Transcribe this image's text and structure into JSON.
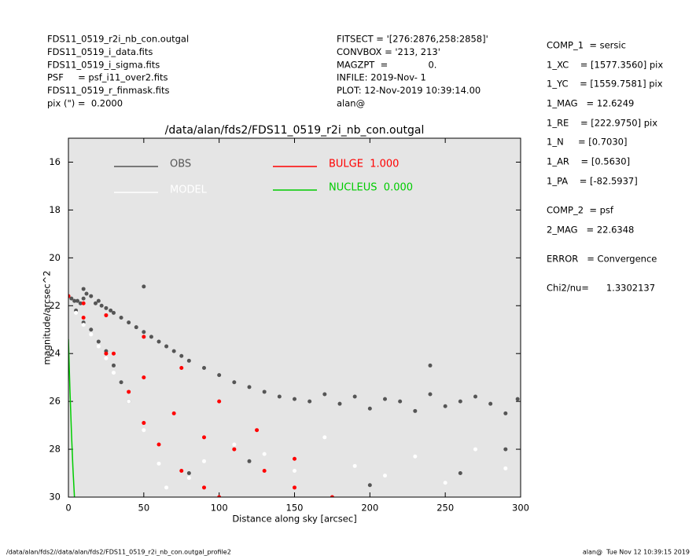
{
  "header_left": [
    "FDS11_0519_r2i_nb_con.outgal",
    "FDS11_0519_i_data.fits",
    "FDS11_0519_i_sigma.fits",
    "PSF     = psf_i11_over2.fits",
    "FDS11_0519_r_finmask.fits",
    "pix (\") =  0.2000"
  ],
  "header_mid": [
    "FITSECT = '[276:2876,258:2858]'",
    "CONVBOX = '213, 213'",
    "MAGZPT  =              0.",
    "INFILE: 2019-Nov- 1",
    "PLOT: 12-Nov-2019 10:39:14.00",
    "alan@"
  ],
  "parameters": [
    "COMP_1  = sersic",
    "1_XC    = [1577.3560] pix",
    "1_YC    = [1559.7581] pix",
    "1_MAG   = 12.6249",
    "1_RE    = [222.9750] pix",
    "1_N     = [0.7030]",
    "1_AR    = [0.5630]",
    "1_PA    = [-82.5937]",
    "COMP_2  = psf",
    "2_MAG   = 22.6348",
    "ERROR   = Convergence",
    "Chi2/nu=      1.3302137"
  ],
  "footer": {
    "left": "/data/alan/fds2//data/alan/fds2/FDS11_0519_r2i_nb_con.outgal_profile2",
    "right": "alan@  Tue Nov 12 10:39:15 2019"
  },
  "chart_data": {
    "type": "scatter",
    "title": "/data/alan/fds2/FDS11_0519_r2i_nb_con.outgal",
    "xlabel": "Distance along sky [arcsec]",
    "ylabel": "magnitude/arcsec^2",
    "xlim": [
      0,
      300
    ],
    "xticks": [
      0,
      50,
      100,
      150,
      200,
      250,
      300
    ],
    "ylim": [
      30,
      15
    ],
    "yticks": [
      16,
      18,
      20,
      22,
      24,
      26,
      28,
      30
    ],
    "background": "#e5e5e5",
    "series": [
      {
        "name": "OBS",
        "color": "#555555",
        "mode": "points",
        "x": [
          0,
          2,
          4,
          6,
          8,
          10,
          12,
          15,
          18,
          20,
          22,
          25,
          28,
          30,
          35,
          40,
          45,
          50,
          55,
          60,
          65,
          70,
          75,
          80,
          90,
          100,
          110,
          120,
          130,
          140,
          150,
          160,
          170,
          180,
          190,
          200,
          210,
          220,
          230,
          240,
          250,
          260,
          270,
          280,
          290,
          298,
          5,
          10,
          15,
          20,
          25,
          30,
          35,
          40,
          50,
          10,
          240,
          80,
          120,
          200,
          260,
          290
        ],
        "y": [
          21.6,
          21.7,
          21.8,
          21.8,
          21.9,
          21.7,
          21.5,
          21.6,
          21.9,
          21.8,
          22.0,
          22.1,
          22.2,
          22.3,
          22.5,
          22.7,
          22.9,
          23.1,
          23.3,
          23.5,
          23.7,
          23.9,
          24.1,
          24.3,
          24.6,
          24.9,
          25.2,
          25.4,
          25.6,
          25.8,
          25.9,
          26.0,
          25.7,
          26.1,
          25.8,
          26.3,
          25.9,
          26.0,
          26.4,
          25.7,
          26.2,
          26.0,
          25.8,
          26.1,
          26.5,
          25.9,
          22.2,
          22.7,
          23.0,
          23.5,
          23.9,
          24.5,
          25.2,
          26.0,
          21.2,
          21.3,
          24.5,
          29.0,
          28.5,
          29.5,
          29.0,
          28.0
        ]
      },
      {
        "name": "MODEL",
        "color": "#ffffff",
        "mode": "points",
        "x": [
          5,
          10,
          15,
          20,
          25,
          30,
          40,
          50,
          60,
          65,
          80,
          90,
          110,
          130,
          150,
          170,
          190,
          210,
          230,
          250,
          270,
          290
        ],
        "y": [
          22.3,
          22.8,
          23.2,
          23.7,
          24.2,
          24.8,
          26.0,
          27.2,
          28.6,
          29.6,
          29.2,
          28.5,
          27.8,
          28.2,
          28.9,
          27.5,
          28.7,
          29.1,
          28.3,
          29.4,
          28.0,
          28.8
        ]
      },
      {
        "name": "BULGE  1.000",
        "color": "#ff0000",
        "mode": "points",
        "x": [
          0,
          10,
          25,
          50,
          75,
          100,
          125,
          150,
          175,
          10,
          25,
          40,
          50,
          60,
          75,
          90,
          100,
          30,
          50,
          70,
          90,
          110,
          130,
          150
        ],
        "y": [
          21.6,
          21.9,
          22.4,
          23.3,
          24.6,
          26.0,
          27.2,
          28.4,
          30.0,
          22.5,
          24.0,
          25.6,
          26.9,
          27.8,
          28.9,
          29.6,
          30.0,
          24.0,
          25.0,
          26.5,
          27.5,
          28.0,
          28.9,
          29.6
        ]
      },
      {
        "name": "NUCLEUS  0.000",
        "color": "#00cc00",
        "mode": "line",
        "x": [
          0,
          1,
          2,
          3,
          4
        ],
        "y": [
          23.4,
          25.5,
          27.3,
          28.8,
          30.0
        ]
      }
    ]
  }
}
